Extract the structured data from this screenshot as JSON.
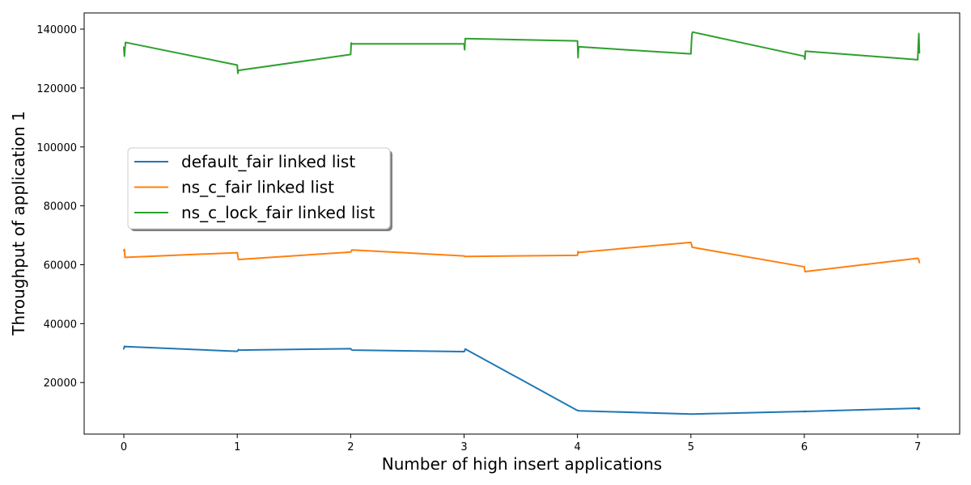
{
  "chart_data": {
    "type": "line",
    "title": "",
    "xlabel": "Number of high insert applications",
    "ylabel": "Throughput of application 1",
    "xlim": [
      -0.35,
      7.37
    ],
    "ylim": [
      2500,
      145500
    ],
    "xticks": [
      0,
      1,
      2,
      3,
      4,
      5,
      6,
      7
    ],
    "yticks": [
      20000,
      40000,
      60000,
      80000,
      100000,
      120000,
      140000
    ],
    "grid": false,
    "legend_position": "center-left",
    "series": [
      {
        "name": "default_fair linked list",
        "color": "#1f77b4",
        "x": [
          0.0,
          0.005,
          0.01,
          0.015,
          1.0,
          1.005,
          1.01,
          1.015,
          2.0,
          2.005,
          2.01,
          2.015,
          3.0,
          3.005,
          3.01,
          3.015,
          4.0,
          4.005,
          4.01,
          4.015,
          5.0,
          5.005,
          5.01,
          5.015,
          6.0,
          6.005,
          6.01,
          6.015,
          7.0,
          7.005,
          7.01,
          7.015
        ],
        "y": [
          31500,
          32300,
          32100,
          32200,
          30600,
          30800,
          31200,
          31000,
          31500,
          31300,
          31100,
          31000,
          30500,
          30700,
          31400,
          31300,
          10500,
          10500,
          10500,
          10400,
          9300,
          9300,
          9300,
          9300,
          10200,
          10100,
          10300,
          10200,
          11300,
          11000,
          11400,
          11100
        ]
      },
      {
        "name": "ns_c_fair linked list",
        "color": "#ff7f0e",
        "x": [
          0.0,
          0.005,
          0.01,
          0.015,
          1.0,
          1.005,
          1.01,
          1.015,
          2.0,
          2.005,
          2.01,
          2.015,
          3.0,
          3.005,
          3.01,
          3.015,
          4.0,
          4.005,
          4.01,
          4.015,
          5.0,
          5.005,
          5.01,
          5.015,
          6.0,
          6.005,
          6.01,
          6.015,
          7.0,
          7.005,
          7.01,
          7.015
        ],
        "y": [
          64800,
          65200,
          62500,
          62500,
          64100,
          63000,
          61800,
          61800,
          64300,
          64500,
          65000,
          65000,
          63000,
          62800,
          62800,
          62800,
          63200,
          64500,
          64000,
          64200,
          67600,
          67000,
          66000,
          65900,
          59300,
          57800,
          57600,
          57700,
          62200,
          62000,
          61500,
          60800
        ]
      },
      {
        "name": "ns_c_lock_fair linked list",
        "color": "#2ca02c",
        "x": [
          0.0,
          0.005,
          0.01,
          0.015,
          1.0,
          1.005,
          1.01,
          1.015,
          2.0,
          2.005,
          2.01,
          2.015,
          3.0,
          3.005,
          3.01,
          3.015,
          4.0,
          4.005,
          4.01,
          4.015,
          5.0,
          5.005,
          5.01,
          5.015,
          6.0,
          6.005,
          6.01,
          6.015,
          7.0,
          7.005,
          7.01,
          7.015
        ],
        "y": [
          133800,
          130800,
          133700,
          135500,
          127800,
          125000,
          126000,
          126000,
          131400,
          135300,
          135000,
          135000,
          135000,
          133000,
          136800,
          136800,
          136000,
          130300,
          134000,
          134000,
          131600,
          135500,
          138500,
          139000,
          130800,
          129800,
          132500,
          132500,
          129600,
          134500,
          138500,
          132000
        ]
      }
    ]
  }
}
